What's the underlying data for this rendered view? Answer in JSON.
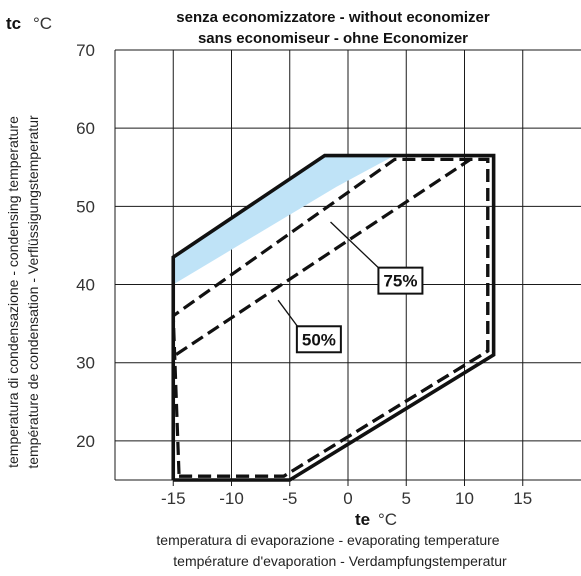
{
  "chart_data": {
    "type": "line",
    "title": [
      "senza economizzatore  -  without economizer",
      "sans economiseur  -  ohne Economizer"
    ],
    "x_axis": {
      "symbol": "te",
      "unit": "°C",
      "label": [
        "temperatura di evaporazione  -   evaporating temperature",
        "température d'evaporation  -  Verdampfungstemperatur"
      ],
      "range": [
        -20,
        20
      ],
      "ticks": [
        -15,
        -10,
        -5,
        0,
        5,
        10,
        15
      ],
      "tick_labels": [
        "-15",
        "-10",
        "-5",
        "0",
        "5",
        "10",
        "15"
      ]
    },
    "y_axis": {
      "symbol": "tc",
      "unit": "°C",
      "label": [
        "temperatura di condensazione - condensing temperature",
        "température de condensation - Verflüssigungstemperatur"
      ],
      "range": [
        15,
        70
      ],
      "ticks": [
        20,
        30,
        40,
        50,
        60,
        70
      ],
      "tick_labels": [
        "20",
        "30",
        "40",
        "50",
        "60",
        "70"
      ]
    },
    "grid": true,
    "series": [
      {
        "name": "",
        "style": "solid",
        "points": [
          [
            -15,
            15
          ],
          [
            -5,
            15
          ],
          [
            12.5,
            31
          ],
          [
            12.5,
            56.5
          ],
          [
            -2,
            56.5
          ],
          [
            -15,
            43.5
          ],
          [
            -15,
            15
          ]
        ]
      },
      {
        "name": "75%",
        "style": "dashed",
        "points": [
          [
            -14.5,
            15.5
          ],
          [
            -5.5,
            15.5
          ],
          [
            12,
            31.5
          ],
          [
            12,
            56
          ],
          [
            4,
            56
          ],
          [
            -15,
            36
          ],
          [
            -14.5,
            15.5
          ]
        ]
      },
      {
        "name": "50%",
        "style": "dashed",
        "points": [
          [
            -14.5,
            15.5
          ],
          [
            -5.5,
            15.5
          ],
          [
            12,
            31.5
          ],
          [
            12,
            56
          ],
          [
            10.5,
            56
          ],
          [
            -14.8,
            31
          ]
        ]
      }
    ],
    "shaded_band": {
      "color": "#bfe3f7",
      "polygon": [
        [
          -15,
          43.5
        ],
        [
          -15,
          40
        ],
        [
          -1,
          52.5
        ],
        [
          4,
          56.5
        ],
        [
          -2,
          56.5
        ]
      ]
    },
    "annotations": [
      {
        "text": "75%",
        "at": [
          4.5,
          40.5
        ],
        "leader_to": [
          -1.5,
          48
        ]
      },
      {
        "text": "50%",
        "at": [
          -2.5,
          33
        ],
        "leader_to": [
          -6,
          38
        ]
      }
    ]
  }
}
